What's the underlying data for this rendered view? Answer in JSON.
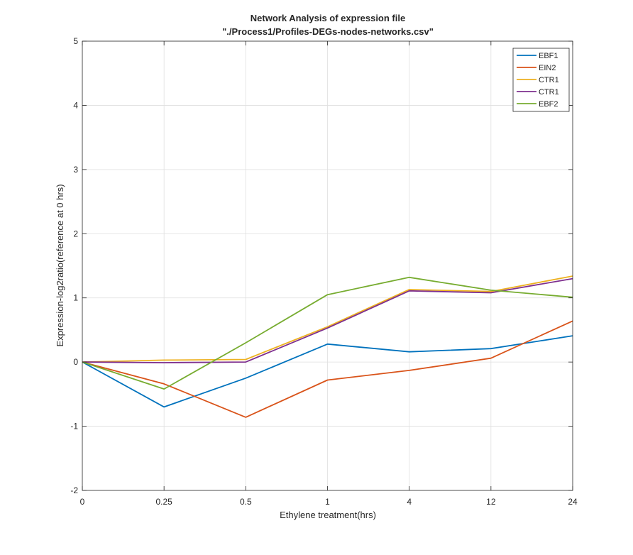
{
  "chart_data": {
    "type": "line",
    "title": "Network Analysis of expression file",
    "subtitle": "\"./Process1/Profiles-DEGs-nodes-networks.csv\"",
    "xlabel": "Ethylene treatment(hrs)",
    "ylabel": "Expression-log2ratio(reference at 0 hrs)",
    "categories": [
      "0",
      "0.25",
      "0.5",
      "1",
      "4",
      "12",
      "24"
    ],
    "ylim": [
      -2,
      5
    ],
    "yticks": [
      "-2",
      "-1",
      "0",
      "1",
      "2",
      "3",
      "4",
      "5"
    ],
    "grid": true,
    "legend_position": "top-right",
    "series": [
      {
        "name": "EBF1",
        "color": "#0072BD",
        "values": [
          0,
          -0.7,
          -0.25,
          0.28,
          0.16,
          0.21,
          0.41
        ]
      },
      {
        "name": "EIN2",
        "color": "#D95319",
        "values": [
          0,
          -0.34,
          -0.86,
          -0.28,
          -0.13,
          0.06,
          0.64
        ]
      },
      {
        "name": "CTR1",
        "color": "#EDB120",
        "values": [
          0,
          0.03,
          0.04,
          0.55,
          1.13,
          1.1,
          1.34
        ]
      },
      {
        "name": "CTR1",
        "color": "#7E2F8E",
        "values": [
          0,
          -0.01,
          0.0,
          0.53,
          1.11,
          1.08,
          1.3
        ]
      },
      {
        "name": "EBF2",
        "color": "#77AC30",
        "values": [
          0,
          -0.42,
          0.3,
          1.05,
          1.32,
          1.12,
          1.01
        ]
      }
    ]
  }
}
